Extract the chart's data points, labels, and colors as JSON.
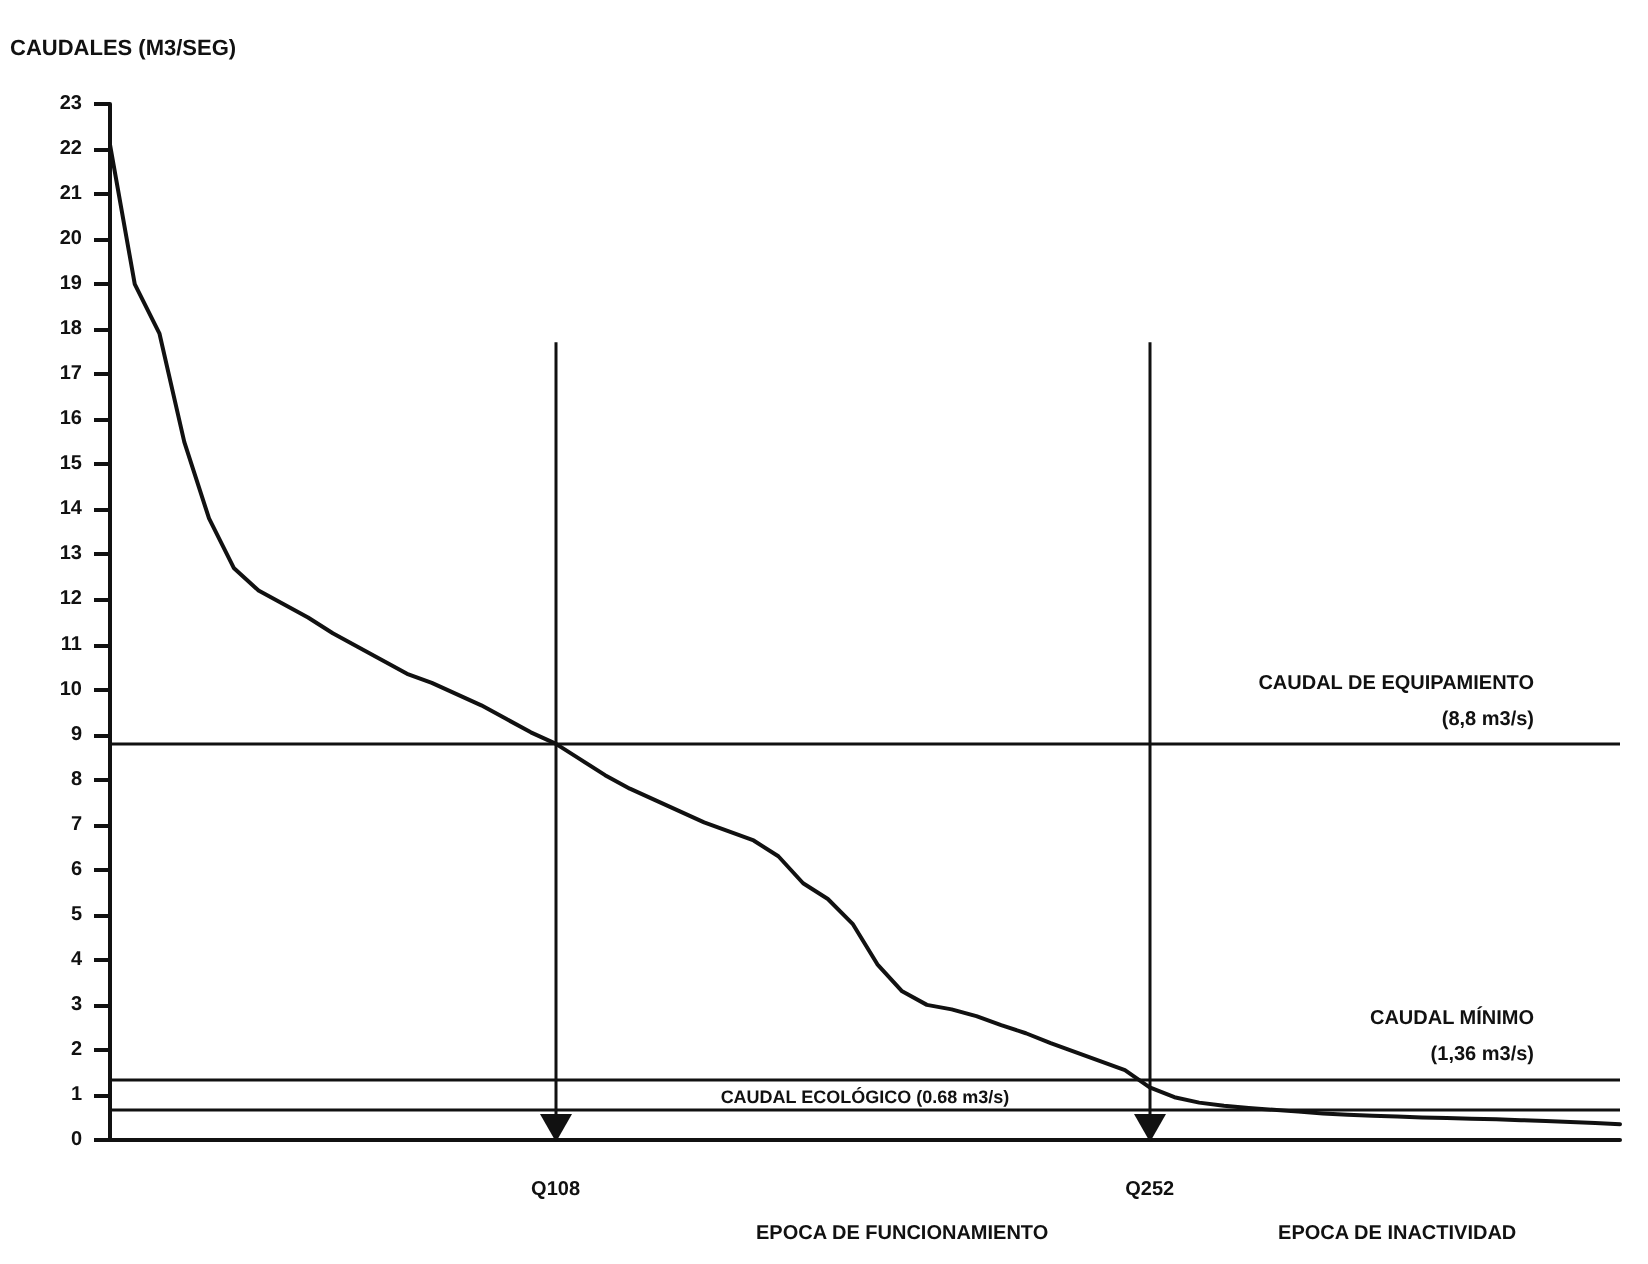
{
  "chart_data": {
    "type": "line",
    "ylabel": "CAUDALES (M3/SEG)",
    "categories": [
      null,
      null,
      null,
      null,
      null,
      null,
      null,
      null,
      null,
      null,
      null,
      null,
      null,
      null,
      null,
      null,
      null,
      null,
      "Q108",
      null,
      null,
      null,
      null,
      null,
      null,
      null,
      null,
      null,
      null,
      null,
      null,
      null,
      null,
      null,
      null,
      null,
      null,
      null,
      null,
      null,
      null,
      null,
      "Q252",
      null,
      null,
      null,
      null,
      null,
      null,
      null,
      null,
      null,
      null,
      null,
      null,
      null,
      null,
      null,
      null,
      null,
      null,
      null
    ],
    "values": [
      22.1,
      19.0,
      17.9,
      15.5,
      13.8,
      12.7,
      12.2,
      11.9,
      11.6,
      11.25,
      10.95,
      10.65,
      10.35,
      10.15,
      9.9,
      9.65,
      9.35,
      9.05,
      8.8,
      8.45,
      8.1,
      7.8,
      7.55,
      7.3,
      7.05,
      6.85,
      6.65,
      6.3,
      5.7,
      5.35,
      4.8,
      3.9,
      3.3,
      3.0,
      2.9,
      2.75,
      2.55,
      2.37,
      2.15,
      1.95,
      1.75,
      1.55,
      1.17,
      0.95,
      0.83,
      0.76,
      0.71,
      0.67,
      0.63,
      0.59,
      0.56,
      0.54,
      0.52,
      0.5,
      0.49,
      0.47,
      0.46,
      0.44,
      0.42,
      0.4,
      0.38,
      0.35
    ],
    "color": "#111111",
    "marker": "none",
    "line_style": "solid",
    "ylim": [
      0,
      23
    ],
    "yticks": [
      0,
      1,
      2,
      3,
      4,
      5,
      6,
      7,
      8,
      9,
      10,
      11,
      12,
      13,
      14,
      15,
      16,
      17,
      18,
      19,
      20,
      21,
      22,
      23
    ],
    "grid": false,
    "ref_lines": [
      {
        "axis": "y",
        "value": 8.8,
        "label": "CAUDAL DE EQUIPAMIENTO\n(8,8 m3/s)",
        "color": "#111111"
      },
      {
        "axis": "y",
        "value": 1.36,
        "label": "CAUDAL MÍNIMO\n(1,36 m3/s)",
        "color": "#111111"
      },
      {
        "axis": "y",
        "value": 0.68,
        "label": "CAUDAL ECOLÓGICO (0.68 m3/s)",
        "color": "#111111"
      },
      {
        "axis": "x",
        "value": "Q108",
        "color": "#111111"
      },
      {
        "axis": "x",
        "value": "Q252",
        "color": "#111111"
      }
    ],
    "annotations": [
      "EPOCA DE FUNCIONAMIENTO",
      "EPOCA DE INACTIVIDAD"
    ]
  }
}
